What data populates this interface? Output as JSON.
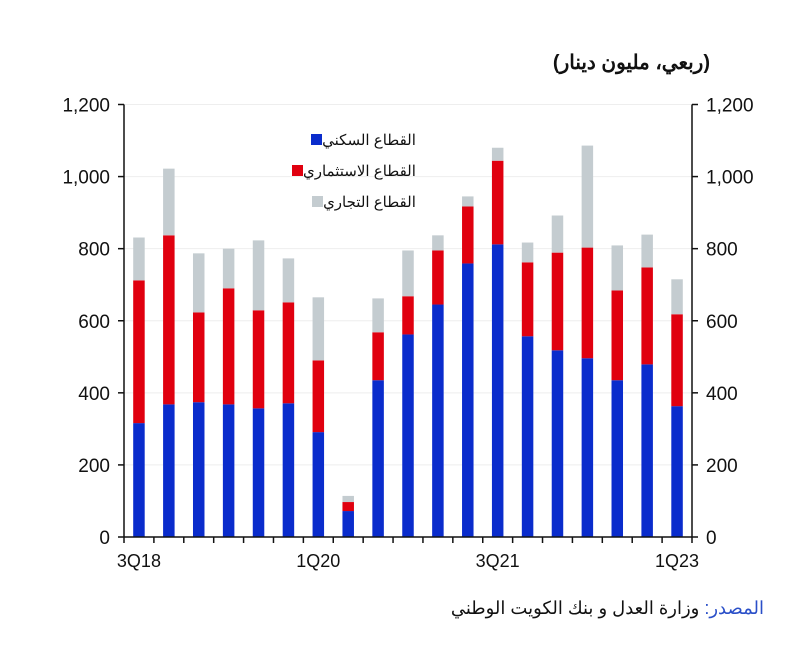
{
  "chart_data": {
    "type": "bar",
    "stacked": true,
    "title": "(ربعي، مليون دينار)",
    "categories": [
      "3Q18",
      "4Q18",
      "1Q19",
      "2Q19",
      "3Q19",
      "4Q19",
      "1Q20",
      "2Q20",
      "3Q20",
      "4Q20",
      "1Q21",
      "2Q21",
      "3Q21",
      "4Q21",
      "1Q22",
      "2Q22",
      "3Q22",
      "4Q22",
      "1Q23"
    ],
    "x_tick_labels": [
      {
        "index": 0,
        "label": "3Q18"
      },
      {
        "index": 6,
        "label": "1Q20"
      },
      {
        "index": 12,
        "label": "3Q21"
      },
      {
        "index": 18,
        "label": "1Q23"
      }
    ],
    "series": [
      {
        "name": "القطاع السكني",
        "color": "#0a2ccc",
        "values": [
          316,
          368,
          374,
          368,
          357,
          371,
          291,
          72,
          435,
          562,
          645,
          759,
          812,
          557,
          518,
          496,
          435,
          479,
          363
        ]
      },
      {
        "name": "القطاع الاستثماري",
        "color": "#e0000f",
        "values": [
          396,
          469,
          249,
          322,
          272,
          280,
          199,
          25,
          133,
          106,
          150,
          158,
          232,
          205,
          271,
          307,
          249,
          269,
          255
        ]
      },
      {
        "name": "القطاع التجاري",
        "color": "#c4ccd0",
        "values": [
          119,
          185,
          164,
          110,
          194,
          122,
          175,
          17,
          94,
          127,
          42,
          28,
          36,
          55,
          103,
          283,
          125,
          91,
          97
        ]
      }
    ],
    "ylim": [
      0,
      1200
    ],
    "yticks": [
      "0",
      "200",
      "400",
      "600",
      "800",
      "1,000",
      "1,200"
    ],
    "y_axes": [
      "left",
      "right"
    ],
    "grid": true,
    "legend_position": "top-left",
    "xlabel": "",
    "ylabel": ""
  },
  "source": {
    "label": "المصدر:",
    "text": " وزارة العدل و بنك الكويت الوطني"
  }
}
